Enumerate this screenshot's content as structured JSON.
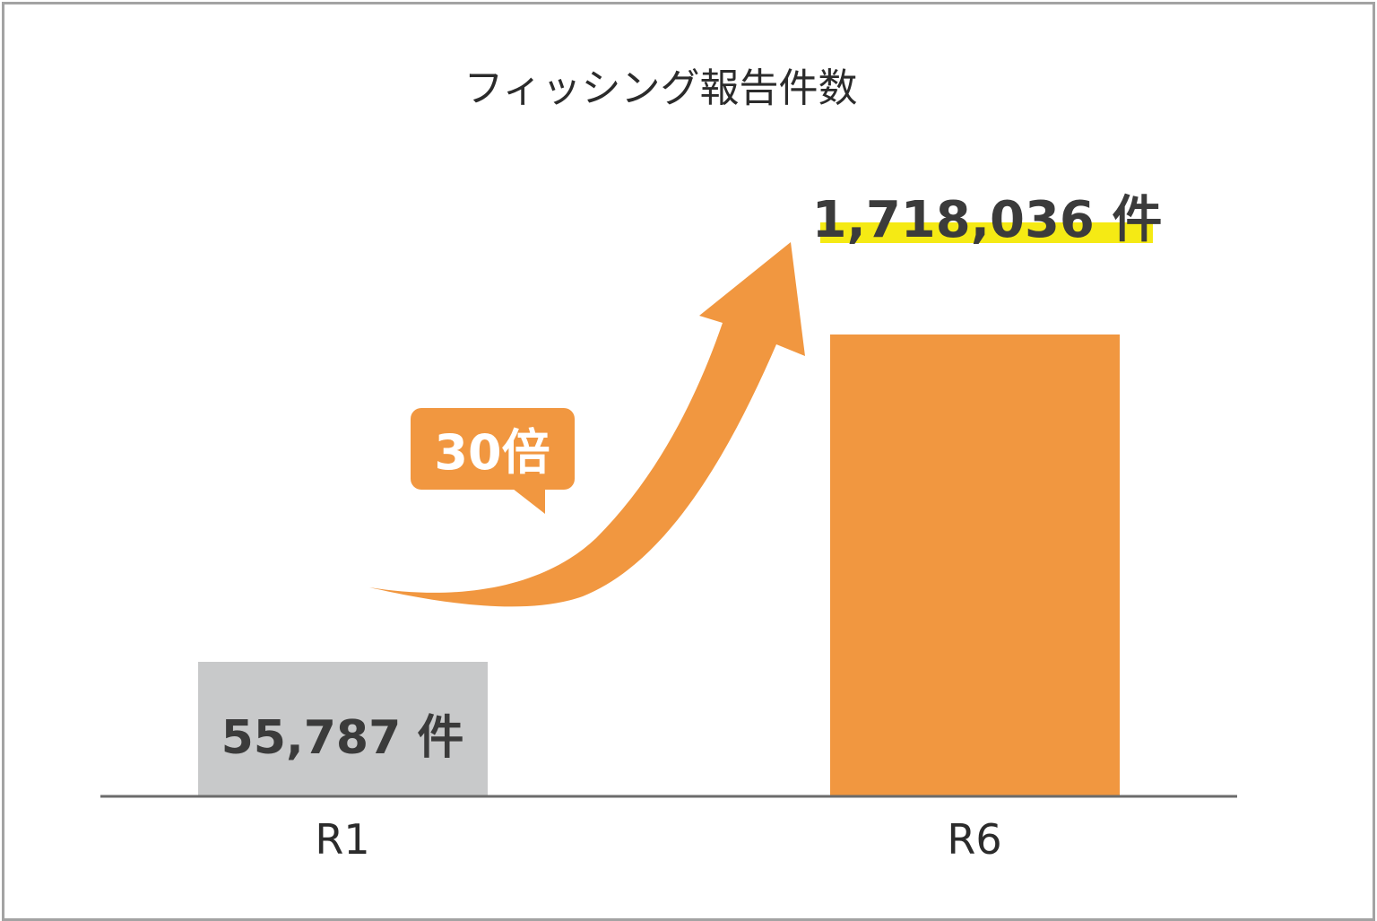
{
  "chart_data": {
    "type": "bar",
    "title": "フィッシング報告件数",
    "categories": [
      "R1",
      "R6"
    ],
    "values": [
      55787,
      1718036
    ],
    "data_labels": [
      "55,787 件",
      "1,718,036 件"
    ],
    "unit": "件",
    "colors": [
      "#c8c9ca",
      "#f19740"
    ],
    "highlight_color": "#f5ea14",
    "annotation": "30倍",
    "annotation_color": "#f19740",
    "axis_color": "#6b6b6b",
    "grid": false,
    "legend": "none"
  }
}
